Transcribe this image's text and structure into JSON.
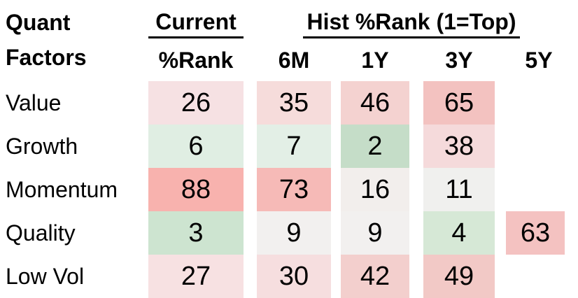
{
  "title": {
    "line1": "Quant",
    "line2": "Factors"
  },
  "headers": {
    "current_group": "Current",
    "hist_group": "Hist %Rank (1=Top)",
    "columns": [
      "%Rank",
      "6M",
      "1Y",
      "3Y",
      "5Y"
    ]
  },
  "chart_data": {
    "type": "heatmap",
    "title": "Quant Factors",
    "row_header": "Quant Factors",
    "column_groups": [
      {
        "label": "Current",
        "columns": [
          "%Rank"
        ]
      },
      {
        "label": "Hist %Rank (1=Top)",
        "columns": [
          "6M",
          "1Y",
          "3Y",
          "5Y"
        ]
      }
    ],
    "columns": [
      "Current %Rank",
      "6M",
      "1Y",
      "3Y",
      "5Y"
    ],
    "scale_note": "1=Top",
    "value_range": [
      1,
      100
    ],
    "colorscale": {
      "low": "#c5ddc8",
      "mid": "#f1efee",
      "high": "#f8b2ae",
      "description": "green = low percentile rank (top), white = middle, red = high percentile rank"
    },
    "rows": [
      {
        "label": "Value",
        "cells": [
          {
            "value": "26",
            "color": "#f6e1e3"
          },
          {
            "value": "35",
            "color": "#f6dcdb"
          },
          {
            "value": "46",
            "color": "#f4d2d0"
          },
          {
            "value": "65",
            "color": "#f3c2c0"
          },
          {
            "value": null,
            "color": null
          }
        ]
      },
      {
        "label": "Growth",
        "cells": [
          {
            "value": "6",
            "color": "#e0eee3"
          },
          {
            "value": "7",
            "color": "#e3efe6"
          },
          {
            "value": "2",
            "color": "#c5ddc8"
          },
          {
            "value": "38",
            "color": "#f5dadb"
          },
          {
            "value": null,
            "color": null
          }
        ]
      },
      {
        "label": "Momentum",
        "cells": [
          {
            "value": "88",
            "color": "#f8b2ae"
          },
          {
            "value": "73",
            "color": "#f6bab7"
          },
          {
            "value": "16",
            "color": "#f2eeec"
          },
          {
            "value": "11",
            "color": "#f0f0ee"
          },
          {
            "value": null,
            "color": null
          }
        ]
      },
      {
        "label": "Quality",
        "cells": [
          {
            "value": "3",
            "color": "#cde4d0"
          },
          {
            "value": "9",
            "color": "#f2f0ef"
          },
          {
            "value": "9",
            "color": "#f2f0ef"
          },
          {
            "value": "4",
            "color": "#d6e8d6"
          },
          {
            "value": "63",
            "color": "#f4c2c1"
          }
        ]
      },
      {
        "label": "Low Vol",
        "cells": [
          {
            "value": "27",
            "color": "#f7e1e2"
          },
          {
            "value": "30",
            "color": "#f6dedf"
          },
          {
            "value": "42",
            "color": "#f3cfcd"
          },
          {
            "value": "49",
            "color": "#f2c9c6"
          },
          {
            "value": null,
            "color": null
          }
        ]
      }
    ]
  }
}
